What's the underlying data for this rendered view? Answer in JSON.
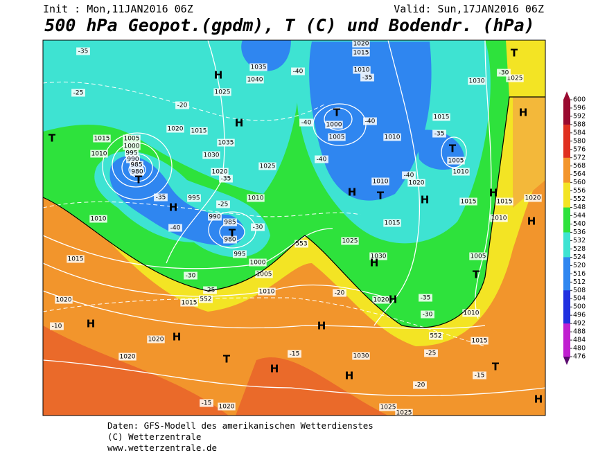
{
  "header": {
    "init": "Init : Mon,11JAN2016 06Z",
    "valid": "Valid: Sun,17JAN2016 06Z",
    "title": "500 hPa Geopot.(gpdm), T (C) und Bodendr. (hPa)"
  },
  "map": {
    "labels": [
      "-35",
      "-25",
      "1015",
      "1005",
      "1000",
      "995",
      "990",
      "985",
      "980",
      "1010",
      "-20",
      "1020",
      "1015",
      "1025",
      "1035",
      "1030",
      "1020",
      "-35",
      "1040",
      "1035",
      "-40",
      "995",
      "-25",
      "990",
      "985",
      "980",
      "-30",
      "995",
      "1000",
      "1005",
      "1010",
      "1010",
      "1025",
      "-35",
      "-40",
      "1010",
      "1015",
      "-30",
      "-25",
      "1015",
      "552",
      "1020",
      "1020",
      "1020",
      "-10",
      "T",
      "H",
      "H",
      "T",
      "H",
      "T",
      "H",
      "T",
      "H",
      "H",
      "1020",
      "1015",
      "1010",
      "-35",
      "T",
      "1000",
      "1005",
      "-40",
      "-40",
      "1010",
      "-40",
      "H",
      "T",
      "1010",
      "1020",
      "H",
      "1015",
      "1025",
      "1030",
      "H",
      "553",
      "-40",
      "1015",
      "-35",
      "T",
      "1005",
      "1010",
      "H",
      "1015",
      "1015",
      "1020",
      "1010",
      "H",
      "1005",
      "T",
      "1010",
      "552",
      "1015",
      "-25",
      "T",
      "-15",
      "-20",
      "H",
      "1025",
      "1025",
      "1030",
      "H",
      "H",
      "-15",
      "1020",
      "H",
      "-35",
      "-30",
      "-20",
      "T",
      "H",
      "1030",
      "1025",
      "-30",
      "1020",
      "-15"
    ]
  },
  "scale": {
    "ticks": [
      600,
      596,
      592,
      588,
      584,
      580,
      576,
      572,
      568,
      564,
      560,
      556,
      552,
      548,
      544,
      540,
      536,
      532,
      528,
      524,
      520,
      516,
      512,
      508,
      504,
      500,
      496,
      492,
      488,
      484,
      480,
      476
    ]
  },
  "footer": {
    "lines": [
      "Daten: GFS-Modell des amerikanischen Wetterdienstes",
      "(C) Wetterzentrale",
      "www.wetterzentrale.de"
    ]
  }
}
